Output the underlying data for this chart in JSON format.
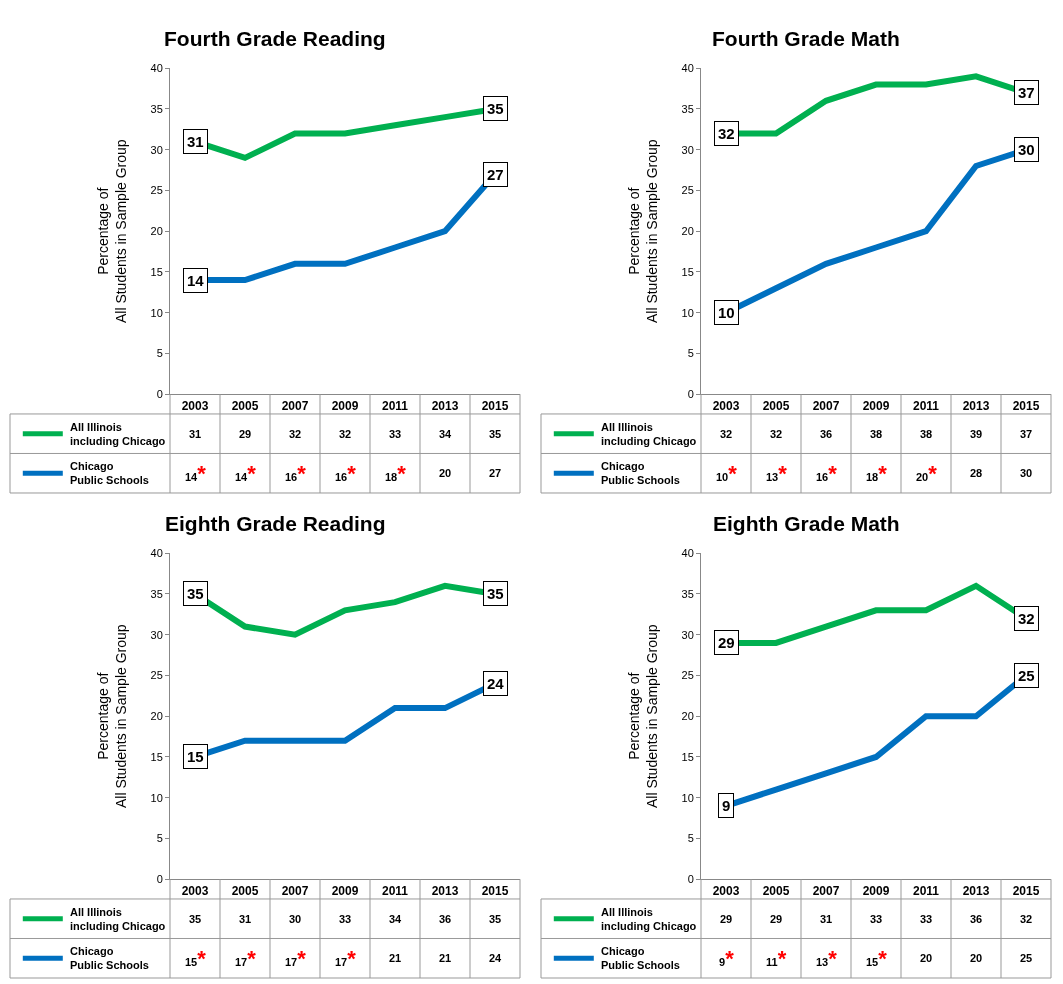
{
  "chart_data": [
    {
      "type": "line",
      "title": "Fourth Grade Reading",
      "ylabel": "Percentage of\nAll Students in Sample Group",
      "categories": [
        "2003",
        "2005",
        "2007",
        "2009",
        "2011",
        "2013",
        "2015"
      ],
      "ylim": [
        0,
        40
      ],
      "yticks": [
        0,
        5,
        10,
        15,
        20,
        25,
        30,
        35,
        40
      ],
      "data_labels": true,
      "legend": "bottom left",
      "series": [
        {
          "name": "All Illinois\nincluding Chicago",
          "color": "#00b050",
          "values": [
            31,
            29,
            32,
            32,
            33,
            34,
            35
          ]
        },
        {
          "name": "Chicago\nPublic Schools",
          "color": "#0070c0",
          "values": [
            14,
            14,
            16,
            16,
            18,
            20,
            27
          ],
          "value_labels": [
            "14*",
            "14*",
            "16*",
            "16*",
            "18*",
            "20",
            "27"
          ]
        }
      ],
      "annotations": [
        {
          "text": "31",
          "x": "2003",
          "y": 31
        },
        {
          "text": "35",
          "x": "2015",
          "y": 35
        },
        {
          "text": "14",
          "x": "2003",
          "y": 14
        },
        {
          "text": "27",
          "x": "2015",
          "y": 27
        }
      ]
    },
    {
      "type": "line",
      "title": "Fourth Grade Math",
      "ylabel": "Percentage of\nAll Students in Sample Group",
      "categories": [
        "2003",
        "2005",
        "2007",
        "2009",
        "2011",
        "2013",
        "2015"
      ],
      "ylim": [
        0,
        40
      ],
      "yticks": [
        0,
        5,
        10,
        15,
        20,
        25,
        30,
        35,
        40
      ],
      "data_labels": true,
      "legend": "bottom left",
      "series": [
        {
          "name": "All Illinois\nincluding Chicago",
          "color": "#00b050",
          "values": [
            32,
            32,
            36,
            38,
            38,
            39,
            37
          ]
        },
        {
          "name": "Chicago\nPublic Schools",
          "color": "#0070c0",
          "values": [
            10,
            13,
            16,
            18,
            20,
            28,
            30
          ],
          "value_labels": [
            "10*",
            "13*",
            "16*",
            "18*",
            "20*",
            "28",
            "30"
          ]
        }
      ],
      "annotations": [
        {
          "text": "32",
          "x": "2003",
          "y": 32
        },
        {
          "text": "37",
          "x": "2015",
          "y": 37
        },
        {
          "text": "10",
          "x": "2003",
          "y": 10
        },
        {
          "text": "30",
          "x": "2015",
          "y": 30
        }
      ]
    },
    {
      "type": "line",
      "title": "Eighth Grade Reading",
      "ylabel": "Percentage of\nAll Students in Sample Group",
      "categories": [
        "2003",
        "2005",
        "2007",
        "2009",
        "2011",
        "2013",
        "2015"
      ],
      "ylim": [
        0,
        40
      ],
      "yticks": [
        0,
        5,
        10,
        15,
        20,
        25,
        30,
        35,
        40
      ],
      "data_labels": true,
      "legend": "bottom left",
      "series": [
        {
          "name": "All Illinois\nincluding Chicago",
          "color": "#00b050",
          "values": [
            35,
            31,
            30,
            33,
            34,
            36,
            35
          ]
        },
        {
          "name": "Chicago\nPublic Schools",
          "color": "#0070c0",
          "values": [
            15,
            17,
            17,
            17,
            21,
            21,
            24
          ],
          "value_labels": [
            "15*",
            "17*",
            "17*",
            "17*",
            "21",
            "21",
            "24"
          ]
        }
      ],
      "annotations": [
        {
          "text": "35",
          "x": "2003",
          "y": 35
        },
        {
          "text": "35",
          "x": "2015",
          "y": 35
        },
        {
          "text": "15",
          "x": "2003",
          "y": 15
        },
        {
          "text": "24",
          "x": "2015",
          "y": 24
        }
      ]
    },
    {
      "type": "line",
      "title": "Eighth Grade Math",
      "ylabel": "Percentage of\nAll Students in Sample Group",
      "categories": [
        "2003",
        "2005",
        "2007",
        "2009",
        "2011",
        "2013",
        "2015"
      ],
      "ylim": [
        0,
        40
      ],
      "yticks": [
        0,
        5,
        10,
        15,
        20,
        25,
        30,
        35,
        40
      ],
      "data_labels": true,
      "legend": "bottom left",
      "series": [
        {
          "name": "All Illinois\nincluding Chicago",
          "color": "#00b050",
          "values": [
            29,
            29,
            31,
            33,
            33,
            36,
            32
          ]
        },
        {
          "name": "Chicago\nPublic Schools",
          "color": "#0070c0",
          "values": [
            9,
            11,
            13,
            15,
            20,
            20,
            25
          ],
          "value_labels": [
            "9*",
            "11*",
            "13*",
            "15*",
            "20",
            "20",
            "25"
          ]
        }
      ],
      "annotations": [
        {
          "text": "29",
          "x": "2003",
          "y": 29
        },
        {
          "text": "32",
          "x": "2015",
          "y": 32
        },
        {
          "text": "9",
          "x": "2003",
          "y": 9
        },
        {
          "text": "25",
          "x": "2015",
          "y": 25
        }
      ]
    }
  ]
}
